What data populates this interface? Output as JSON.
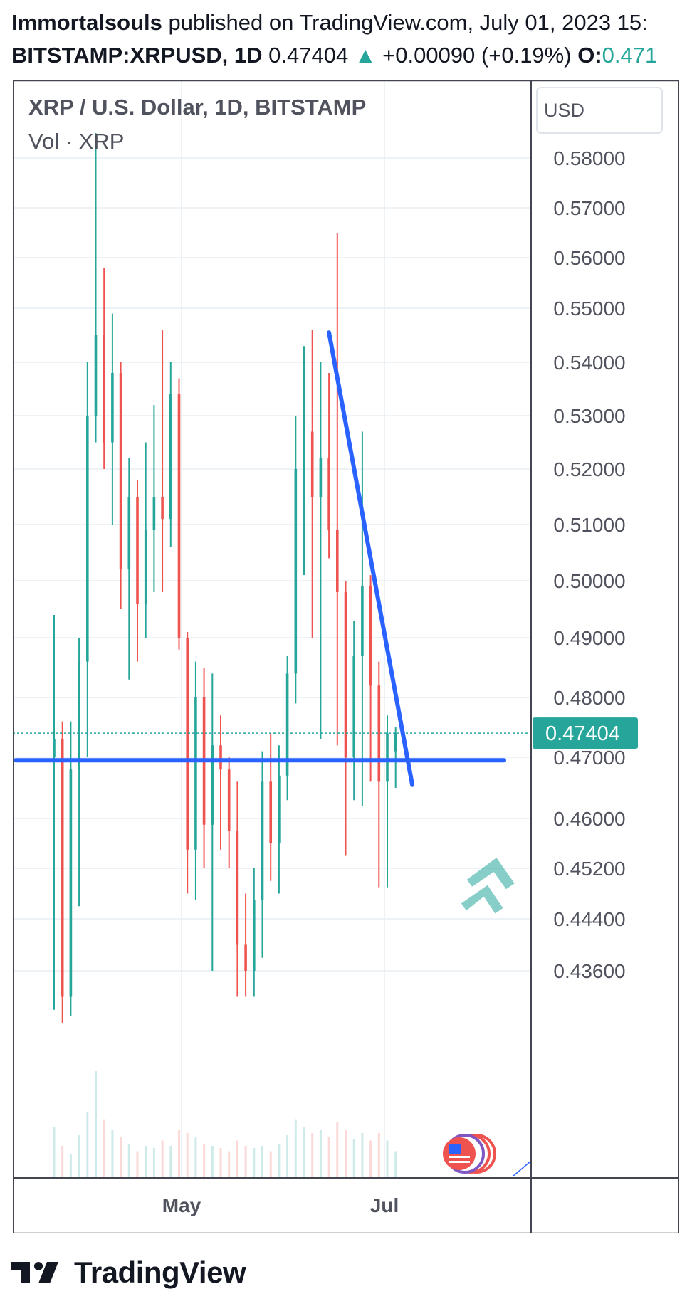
{
  "header": {
    "publisher": "Immortalsouls",
    "published_text": "published on TradingView.com, July 01, 2023 15:",
    "symbol": "BITSTAMP:XRPUSD, 1D",
    "last_price": "0.47404",
    "change_arrow": "▲",
    "change": "+0.00090 (+0.19%)",
    "open_label": "O:",
    "open_value": "0.471"
  },
  "chart_data": {
    "type": "candlestick",
    "title": "XRP / U.S. Dollar, 1D, BITSTAMP",
    "subtitle": "Vol · XRP",
    "currency_label": "USD",
    "y_tick_labels": [
      "0.58000",
      "0.57000",
      "0.56000",
      "0.55000",
      "0.54000",
      "0.53000",
      "0.52000",
      "0.51000",
      "0.50000",
      "0.49000",
      "0.48000",
      "0.47000",
      "0.46000",
      "0.45200",
      "0.44400",
      "0.43600"
    ],
    "x_tick_labels": [
      "May",
      "Jul"
    ],
    "last_price_label": "0.47404",
    "colors": {
      "up": "#26a69a",
      "down": "#ef5350",
      "trendline": "#2962ff",
      "price_tag": "#26a69a"
    },
    "grid": true,
    "candles": [
      {
        "o": 0.47,
        "h": 0.494,
        "l": 0.43,
        "c": 0.473
      },
      {
        "o": 0.473,
        "h": 0.476,
        "l": 0.428,
        "c": 0.432
      },
      {
        "o": 0.432,
        "h": 0.476,
        "l": 0.429,
        "c": 0.468
      },
      {
        "o": 0.468,
        "h": 0.49,
        "l": 0.446,
        "c": 0.486
      },
      {
        "o": 0.486,
        "h": 0.54,
        "l": 0.47,
        "c": 0.53
      },
      {
        "o": 0.53,
        "h": 0.585,
        "l": 0.525,
        "c": 0.545
      },
      {
        "o": 0.545,
        "h": 0.558,
        "l": 0.52,
        "c": 0.525
      },
      {
        "o": 0.525,
        "h": 0.549,
        "l": 0.51,
        "c": 0.538
      },
      {
        "o": 0.538,
        "h": 0.54,
        "l": 0.495,
        "c": 0.502
      },
      {
        "o": 0.502,
        "h": 0.522,
        "l": 0.483,
        "c": 0.515
      },
      {
        "o": 0.515,
        "h": 0.518,
        "l": 0.486,
        "c": 0.496
      },
      {
        "o": 0.496,
        "h": 0.525,
        "l": 0.49,
        "c": 0.509
      },
      {
        "o": 0.509,
        "h": 0.532,
        "l": 0.498,
        "c": 0.515
      },
      {
        "o": 0.515,
        "h": 0.546,
        "l": 0.498,
        "c": 0.511
      },
      {
        "o": 0.511,
        "h": 0.54,
        "l": 0.506,
        "c": 0.534
      },
      {
        "o": 0.534,
        "h": 0.537,
        "l": 0.488,
        "c": 0.49
      },
      {
        "o": 0.49,
        "h": 0.491,
        "l": 0.448,
        "c": 0.455
      },
      {
        "o": 0.455,
        "h": 0.486,
        "l": 0.447,
        "c": 0.48
      },
      {
        "o": 0.48,
        "h": 0.485,
        "l": 0.452,
        "c": 0.459
      },
      {
        "o": 0.459,
        "h": 0.484,
        "l": 0.436,
        "c": 0.472
      },
      {
        "o": 0.472,
        "h": 0.477,
        "l": 0.455,
        "c": 0.468
      },
      {
        "o": 0.468,
        "h": 0.47,
        "l": 0.452,
        "c": 0.458
      },
      {
        "o": 0.458,
        "h": 0.466,
        "l": 0.432,
        "c": 0.44
      },
      {
        "o": 0.44,
        "h": 0.448,
        "l": 0.432,
        "c": 0.436
      },
      {
        "o": 0.436,
        "h": 0.452,
        "l": 0.432,
        "c": 0.447
      },
      {
        "o": 0.447,
        "h": 0.471,
        "l": 0.438,
        "c": 0.466
      },
      {
        "o": 0.466,
        "h": 0.474,
        "l": 0.45,
        "c": 0.456
      },
      {
        "o": 0.456,
        "h": 0.472,
        "l": 0.448,
        "c": 0.467
      },
      {
        "o": 0.467,
        "h": 0.487,
        "l": 0.463,
        "c": 0.484
      },
      {
        "o": 0.484,
        "h": 0.53,
        "l": 0.479,
        "c": 0.52
      },
      {
        "o": 0.52,
        "h": 0.543,
        "l": 0.501,
        "c": 0.527
      },
      {
        "o": 0.527,
        "h": 0.546,
        "l": 0.49,
        "c": 0.515
      },
      {
        "o": 0.515,
        "h": 0.54,
        "l": 0.473,
        "c": 0.522
      },
      {
        "o": 0.522,
        "h": 0.538,
        "l": 0.504,
        "c": 0.509
      },
      {
        "o": 0.509,
        "h": 0.565,
        "l": 0.472,
        "c": 0.498
      },
      {
        "o": 0.498,
        "h": 0.5,
        "l": 0.454,
        "c": 0.47
      },
      {
        "o": 0.47,
        "h": 0.493,
        "l": 0.463,
        "c": 0.487
      },
      {
        "o": 0.487,
        "h": 0.527,
        "l": 0.462,
        "c": 0.499
      },
      {
        "o": 0.499,
        "h": 0.501,
        "l": 0.466,
        "c": 0.482
      },
      {
        "o": 0.482,
        "h": 0.486,
        "l": 0.449,
        "c": 0.466
      },
      {
        "o": 0.466,
        "h": 0.477,
        "l": 0.449,
        "c": 0.474
      },
      {
        "o": 0.471,
        "h": 0.475,
        "l": 0.465,
        "c": 0.47404
      }
    ],
    "volumes": [
      0.48,
      0.3,
      0.22,
      0.4,
      0.62,
      1.0,
      0.55,
      0.45,
      0.38,
      0.32,
      0.25,
      0.3,
      0.28,
      0.35,
      0.3,
      0.45,
      0.42,
      0.38,
      0.32,
      0.3,
      0.28,
      0.25,
      0.35,
      0.3,
      0.28,
      0.3,
      0.25,
      0.32,
      0.4,
      0.55,
      0.48,
      0.42,
      0.45,
      0.38,
      0.52,
      0.45,
      0.36,
      0.42,
      0.35,
      0.42,
      0.35,
      0.25
    ],
    "annotations": [
      {
        "type": "horizontal_line",
        "price": 0.4695
      },
      {
        "type": "trendline",
        "from": {
          "candle": 33,
          "price": 0.5455
        },
        "to": {
          "candle": 43,
          "price": 0.4655
        }
      }
    ]
  },
  "footer": {
    "brand": "TradingView"
  }
}
